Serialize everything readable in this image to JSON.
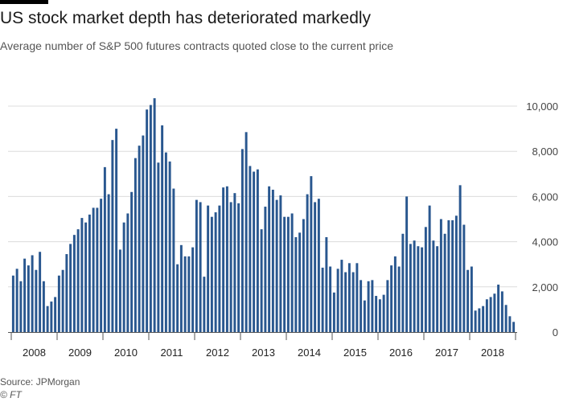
{
  "header": {
    "title": "US stock market depth has deteriorated markedly",
    "subtitle": "Average number of S&P 500 futures contracts quoted close to the current price"
  },
  "footer": {
    "source": "Source: JPMorgan",
    "copyright": "© FT"
  },
  "colors": {
    "bar": "#29578f",
    "grid": "#dcdcdc",
    "axis": "#555555"
  },
  "chart_data": {
    "type": "bar",
    "title": "US stock market depth has deteriorated markedly",
    "subtitle": "Average number of S&P 500 futures contracts quoted close to the current price",
    "xlabel": "",
    "ylabel": "",
    "ylim": [
      0,
      10000
    ],
    "y_axis_position": "right",
    "grid": true,
    "y_ticks": [
      0,
      2000,
      4000,
      6000,
      8000,
      10000
    ],
    "y_tick_labels": [
      "0",
      "2,000",
      "4,000",
      "6,000",
      "8,000",
      "10,000"
    ],
    "years": [
      "2008",
      "2009",
      "2010",
      "2011",
      "2012",
      "2013",
      "2014",
      "2015",
      "2016",
      "2017",
      "2018"
    ],
    "frequency": "monthly",
    "start": "2008-01",
    "values": [
      2500,
      2800,
      2250,
      3250,
      2950,
      3400,
      2750,
      3550,
      2250,
      1150,
      1350,
      1550,
      2500,
      2750,
      3450,
      3900,
      4300,
      4550,
      5050,
      4850,
      5200,
      5500,
      5500,
      5900,
      7300,
      6100,
      8500,
      9000,
      3650,
      4850,
      5250,
      6200,
      7700,
      8250,
      8700,
      9850,
      10050,
      10350,
      7500,
      9150,
      7950,
      7550,
      6350,
      3000,
      3850,
      3350,
      3350,
      3750,
      5850,
      5750,
      2450,
      5600,
      5100,
      5300,
      5600,
      6400,
      6450,
      5750,
      6150,
      5700,
      8100,
      8850,
      7350,
      7100,
      7200,
      4550,
      5550,
      6450,
      6300,
      5850,
      6050,
      5100,
      5100,
      5250,
      4200,
      4400,
      5000,
      6100,
      6900,
      5750,
      5900,
      2850,
      4200,
      2900,
      1750,
      2800,
      3200,
      2650,
      3050,
      2650,
      3050,
      2300,
      1400,
      2250,
      2300,
      1600,
      1450,
      1650,
      2300,
      2950,
      3350,
      2900,
      4350,
      6000,
      3900,
      4050,
      3800,
      3750,
      4650,
      5600,
      4050,
      3800,
      5000,
      4350,
      4950,
      4950,
      5150,
      6500,
      4750,
      2750,
      2900,
      950,
      1050,
      1150,
      1450,
      1550,
      1700,
      2100,
      1800,
      1200,
      700,
      450
    ]
  }
}
